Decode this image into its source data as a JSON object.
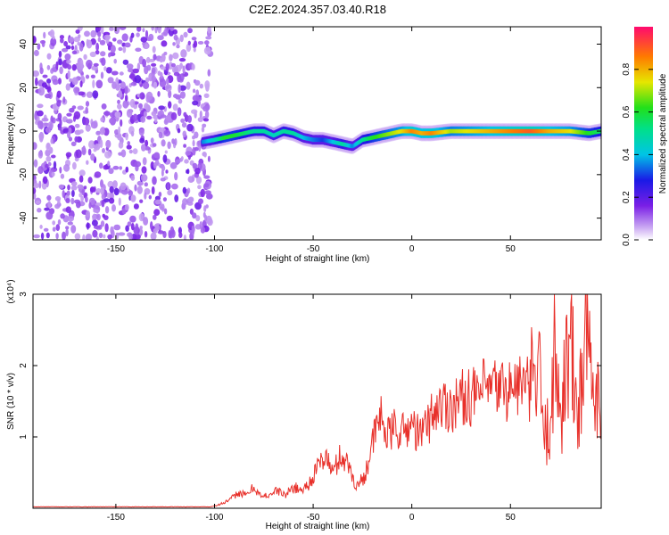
{
  "chart_data": [
    {
      "type": "heatmap",
      "title": "C2E2.2024.357.03.40.R18",
      "xlabel": "Height of straight line (km)",
      "ylabel": "Frequency (Hz)",
      "xlim": [
        -192,
        96
      ],
      "ylim": [
        -50,
        48
      ],
      "xticks": [
        -150,
        -100,
        -50,
        0,
        50
      ],
      "yticks": [
        40,
        20,
        0,
        -20,
        -40
      ],
      "colorbar": {
        "label": "Normalized spectral amplitude",
        "range": [
          0,
          1
        ],
        "ticks": [
          "0.0",
          "0.2",
          "0.4",
          "0.6",
          "0.8"
        ]
      },
      "noise_region_x": [
        -192,
        -102
      ],
      "signal_trace": {
        "x": [
          -106,
          -100,
          -95,
          -90,
          -85,
          -80,
          -75,
          -70,
          -65,
          -60,
          -55,
          -50,
          -45,
          -40,
          -35,
          -30,
          -25,
          -20,
          -15,
          -10,
          -5,
          0,
          5,
          10,
          20,
          30,
          40,
          50,
          60,
          70,
          80,
          90,
          96
        ],
        "y": [
          -5,
          -4,
          -3,
          -2,
          -1,
          0,
          0,
          -2,
          0,
          -1,
          -3,
          -4,
          -4,
          -5,
          -6,
          -7,
          -4,
          -3,
          -2,
          -1,
          0,
          0,
          -1,
          -1,
          0,
          0,
          0,
          0,
          0,
          0,
          0,
          -1,
          0
        ],
        "amplitude": [
          0.35,
          0.45,
          0.6,
          0.6,
          0.55,
          0.5,
          0.5,
          0.45,
          0.5,
          0.5,
          0.4,
          0.35,
          0.3,
          0.4,
          0.5,
          0.35,
          0.5,
          0.6,
          0.65,
          0.7,
          0.75,
          0.85,
          0.8,
          0.85,
          0.7,
          0.75,
          0.8,
          0.85,
          0.9,
          0.8,
          0.75,
          0.6,
          0.55
        ]
      },
      "grid": false
    },
    {
      "type": "line",
      "xlabel": "Height of straight line (km)",
      "ylabel": "SNR (10 * v/v)",
      "y_multiplier": "(x10⁴)",
      "xlim": [
        -192,
        96
      ],
      "ylim": [
        0,
        3
      ],
      "xticks": [
        -150,
        -100,
        -50,
        0,
        50
      ],
      "yticks": [
        1,
        2,
        3
      ],
      "color": "#e8302a",
      "series": [
        {
          "x": [
            -192,
            -160,
            -130,
            -110,
            -102,
            -98,
            -95,
            -92,
            -88,
            -84,
            -80,
            -76,
            -72,
            -68,
            -64,
            -60,
            -56,
            -52,
            -48,
            -44,
            -40,
            -36,
            -32,
            -28,
            -24,
            -20,
            -16,
            -12,
            -8,
            -4,
            0,
            4,
            8,
            12,
            16,
            20,
            24,
            28,
            32,
            36,
            40,
            44,
            48,
            52,
            56,
            60,
            64,
            68,
            72,
            76,
            80,
            84,
            88,
            92,
            96
          ],
          "values": [
            0.02,
            0.02,
            0.02,
            0.02,
            0.02,
            0.05,
            0.08,
            0.12,
            0.22,
            0.18,
            0.3,
            0.15,
            0.2,
            0.25,
            0.18,
            0.3,
            0.25,
            0.35,
            0.55,
            0.75,
            0.5,
            0.75,
            0.6,
            0.3,
            0.45,
            0.9,
            1.3,
            1.0,
            1.15,
            1.05,
            1.2,
            1.0,
            1.2,
            1.4,
            1.45,
            1.45,
            1.5,
            1.6,
            1.55,
            1.65,
            1.65,
            1.7,
            1.65,
            1.7,
            1.75,
            1.65,
            1.9,
            0.9,
            2.0,
            1.5,
            2.4,
            1.2,
            2.6,
            1.5,
            2.2
          ]
        }
      ],
      "grid": false
    }
  ]
}
